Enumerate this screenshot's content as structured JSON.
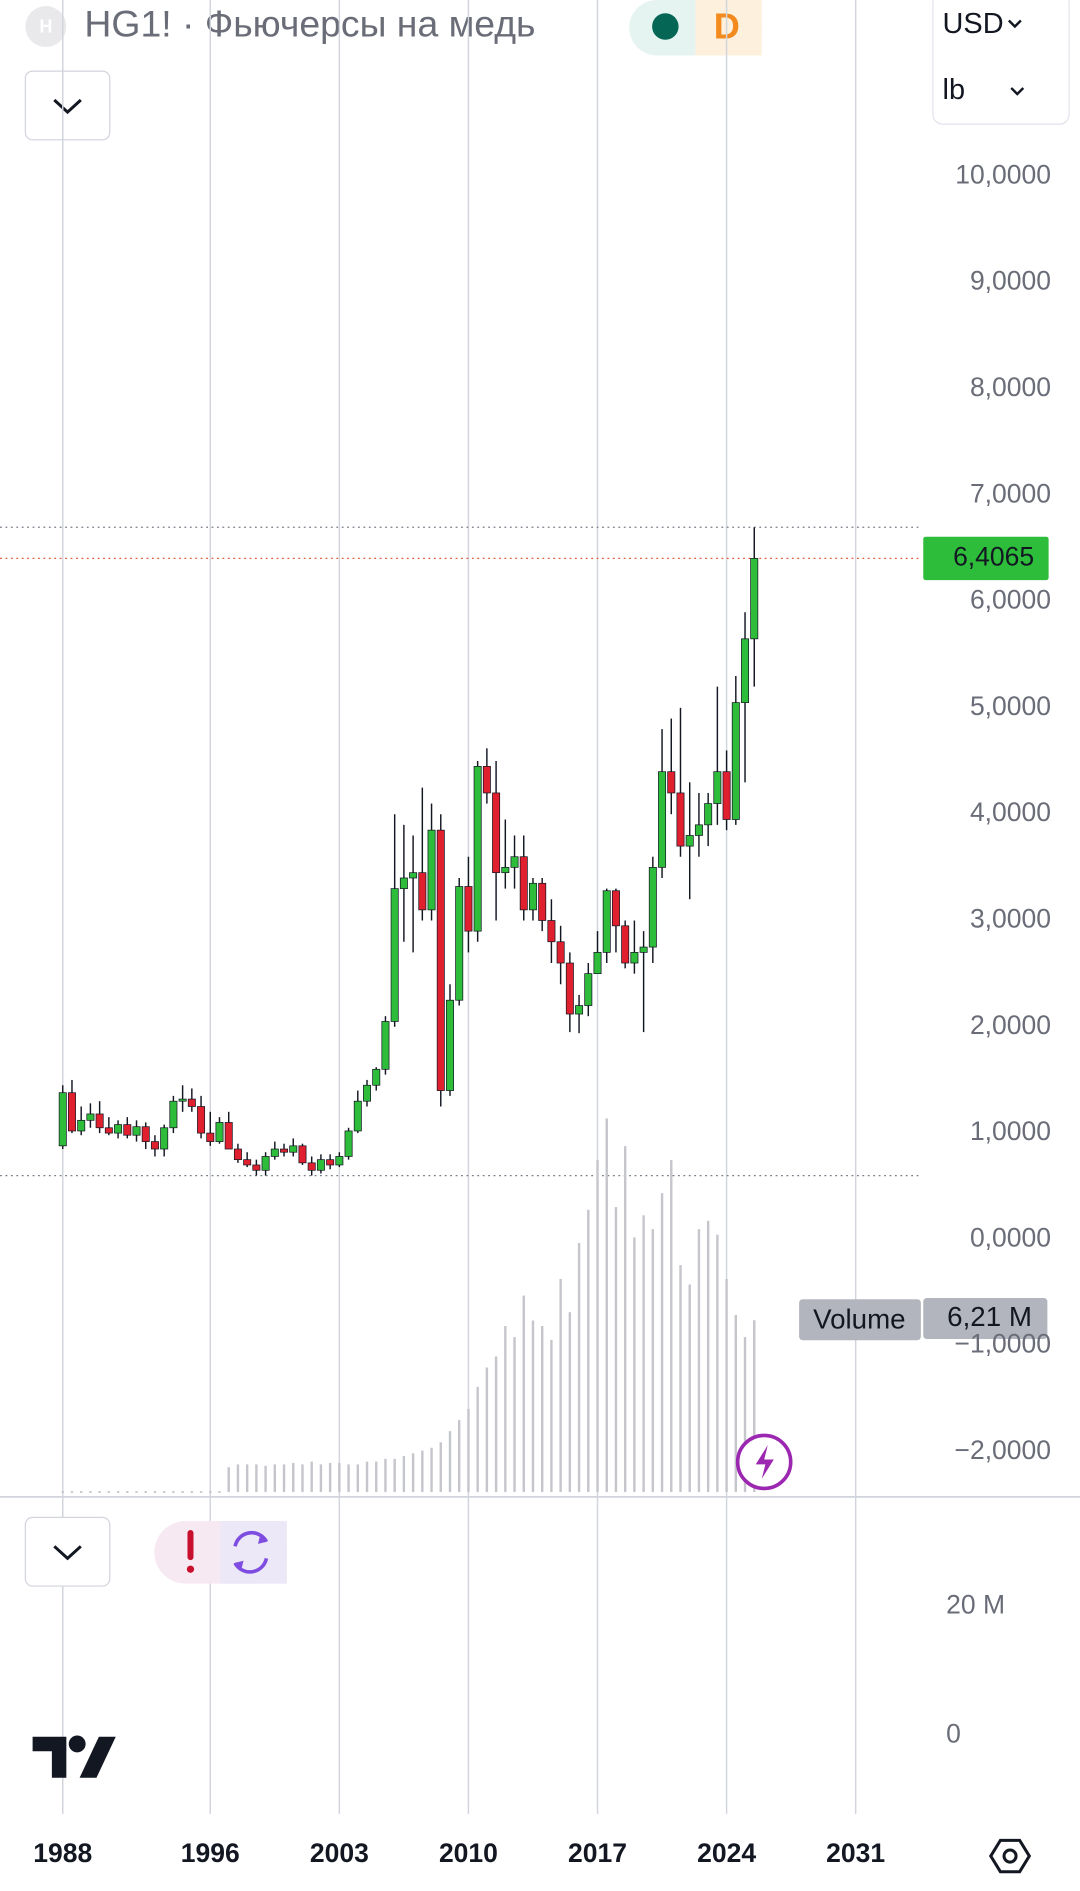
{
  "ui": {
    "logo_letter": "H",
    "title": "HG1! · Фьючерсы на медь",
    "badge": "D",
    "currency": "USD",
    "unit": "lb"
  },
  "chart_data": {
    "type": "candlestick",
    "up_color": "#2ebd3b",
    "down_color": "#e0202f",
    "x": [
      1988,
      1988.5,
      1989,
      1989.5,
      1990,
      1990.5,
      1991,
      1991.5,
      1992,
      1992.5,
      1993,
      1993.5,
      1994,
      1994.5,
      1995,
      1995.5,
      1996,
      1996.5,
      1997,
      1997.5,
      1998,
      1998.5,
      1999,
      1999.5,
      2000,
      2000.5,
      2001,
      2001.5,
      2002,
      2002.5,
      2003,
      2003.5,
      2004,
      2004.5,
      2005,
      2005.5,
      2006,
      2006.5,
      2007,
      2007.5,
      2008,
      2008.5,
      2009,
      2009.5,
      2010,
      2010.5,
      2011,
      2011.5,
      2012,
      2012.5,
      2013,
      2013.5,
      2014,
      2014.5,
      2015,
      2015.5,
      2016,
      2016.5,
      2017,
      2017.5,
      2018,
      2018.5,
      2019,
      2019.5,
      2020,
      2020.5,
      2021,
      2021.5,
      2022,
      2022.5,
      2023,
      2023.5,
      2024,
      2024.5,
      2025,
      2025.5
    ],
    "open": [
      0.88,
      1.38,
      1.02,
      1.12,
      1.18,
      1.05,
      1.0,
      1.08,
      0.98,
      1.06,
      0.92,
      0.85,
      1.05,
      1.3,
      1.32,
      1.25,
      1.0,
      0.92,
      1.1,
      0.85,
      0.75,
      0.7,
      0.65,
      0.78,
      0.85,
      0.82,
      0.88,
      0.72,
      0.65,
      0.75,
      0.7,
      0.78,
      1.02,
      1.3,
      1.45,
      1.6,
      2.05,
      3.3,
      3.4,
      3.45,
      3.1,
      3.85,
      1.4,
      2.25,
      3.32,
      2.9,
      4.45,
      4.2,
      3.45,
      3.5,
      3.6,
      3.1,
      3.35,
      3.0,
      2.8,
      2.6,
      2.12,
      2.2,
      2.5,
      2.7,
      3.28,
      2.95,
      2.6,
      2.7,
      2.75,
      3.5,
      4.4,
      4.2,
      3.7,
      3.8,
      3.9,
      4.1,
      4.4,
      3.95,
      5.05,
      5.65
    ],
    "high": [
      1.45,
      1.5,
      1.25,
      1.28,
      1.3,
      1.15,
      1.12,
      1.15,
      1.12,
      1.1,
      0.98,
      1.08,
      1.35,
      1.45,
      1.42,
      1.35,
      1.2,
      1.15,
      1.2,
      0.9,
      0.82,
      0.75,
      0.82,
      0.92,
      0.9,
      0.95,
      0.9,
      0.78,
      0.8,
      0.8,
      0.82,
      1.05,
      1.4,
      1.5,
      1.62,
      2.1,
      4.0,
      3.9,
      3.8,
      4.25,
      4.1,
      4.0,
      2.4,
      3.4,
      3.6,
      4.5,
      4.62,
      4.5,
      3.95,
      3.8,
      3.8,
      3.4,
      3.4,
      3.2,
      2.95,
      2.7,
      2.3,
      2.6,
      2.9,
      3.3,
      3.3,
      3.0,
      3.0,
      2.9,
      3.6,
      4.8,
      4.9,
      5.0,
      4.3,
      4.2,
      4.2,
      5.2,
      4.6,
      5.3,
      5.9,
      6.7
    ],
    "low": [
      0.85,
      1.0,
      0.98,
      1.05,
      1.0,
      0.98,
      0.95,
      0.95,
      0.92,
      0.85,
      0.78,
      0.78,
      1.0,
      1.2,
      1.2,
      0.95,
      0.88,
      0.9,
      0.85,
      0.72,
      0.68,
      0.6,
      0.6,
      0.75,
      0.78,
      0.78,
      0.7,
      0.6,
      0.62,
      0.66,
      0.68,
      0.75,
      1.0,
      1.25,
      1.4,
      1.55,
      2.0,
      2.8,
      2.7,
      3.0,
      3.0,
      1.25,
      1.35,
      2.2,
      2.7,
      2.8,
      4.1,
      3.0,
      3.3,
      3.3,
      3.0,
      3.0,
      2.9,
      2.6,
      2.4,
      1.95,
      1.94,
      2.1,
      2.5,
      2.6,
      2.7,
      2.55,
      2.5,
      1.95,
      2.6,
      3.4,
      4.0,
      3.6,
      3.2,
      3.6,
      3.7,
      3.9,
      3.85,
      3.9,
      4.3,
      5.2
    ],
    "close": [
      1.38,
      1.02,
      1.12,
      1.18,
      1.05,
      1.0,
      1.08,
      0.98,
      1.06,
      0.92,
      0.85,
      1.05,
      1.3,
      1.32,
      1.25,
      1.0,
      0.92,
      1.1,
      0.85,
      0.75,
      0.7,
      0.65,
      0.78,
      0.85,
      0.82,
      0.88,
      0.72,
      0.65,
      0.75,
      0.7,
      0.78,
      1.02,
      1.3,
      1.45,
      1.6,
      2.05,
      3.3,
      3.4,
      3.45,
      3.1,
      3.85,
      1.4,
      2.25,
      3.32,
      2.9,
      4.45,
      4.2,
      3.45,
      3.5,
      3.6,
      3.1,
      3.35,
      3.0,
      2.8,
      2.6,
      2.12,
      2.2,
      2.5,
      2.7,
      3.28,
      2.95,
      2.6,
      2.7,
      2.75,
      3.5,
      4.4,
      4.2,
      3.7,
      3.8,
      3.9,
      4.1,
      4.4,
      3.95,
      5.05,
      5.65,
      6.4065
    ],
    "last_label": "6,4065",
    "last_color": "#2ebd3b",
    "xlim": [
      1984.6,
      2034.6
    ],
    "xticks": [
      1988,
      1996,
      2003,
      2010,
      2017,
      2024,
      2031
    ],
    "ylim": [
      -2.4,
      11.66
    ],
    "yticks": [
      {
        "value": 10,
        "label": "10,0000"
      },
      {
        "value": 9,
        "label": "9,0000"
      },
      {
        "value": 8,
        "label": "8,0000"
      },
      {
        "value": 7,
        "label": "7,0000"
      },
      {
        "value": 6,
        "label": "6,0000"
      },
      {
        "value": 5,
        "label": "5,0000"
      },
      {
        "value": 4,
        "label": "4,0000"
      },
      {
        "value": 3,
        "label": "3,0000"
      },
      {
        "value": 2,
        "label": "2,0000"
      },
      {
        "value": 1,
        "label": "1,0000"
      },
      {
        "value": 0,
        "label": "0,0000"
      },
      {
        "value": -1,
        "label": "−1,0000"
      },
      {
        "value": -2,
        "label": "−2,0000"
      }
    ],
    "grid": true,
    "volume": {
      "name": "Volume",
      "color": "#c4c6cc",
      "values": [
        0.02,
        0.02,
        0.02,
        0.02,
        0.02,
        0.02,
        0.02,
        0.02,
        0.02,
        0.02,
        0.02,
        0.02,
        0.02,
        0.02,
        0.02,
        0.02,
        0.02,
        0.02,
        0.9,
        1.0,
        1.0,
        1.0,
        0.95,
        1.0,
        1.0,
        1.05,
        1.0,
        1.1,
        1.0,
        1.05,
        1.05,
        1.0,
        1.0,
        1.1,
        1.1,
        1.2,
        1.2,
        1.3,
        1.4,
        1.5,
        1.6,
        1.8,
        2.2,
        2.6,
        3.0,
        3.8,
        4.5,
        4.9,
        6.0,
        5.6,
        7.1,
        6.2,
        6.0,
        5.5,
        7.7,
        6.5,
        9.0,
        10.2,
        12.0,
        13.5,
        10.3,
        12.5,
        9.2,
        10.0,
        9.5,
        10.8,
        12.0,
        8.2,
        7.5,
        9.5,
        9.8,
        9.3,
        7.7,
        6.4,
        5.6,
        6.21
      ],
      "last_label": "6,21 M",
      "yticks": [
        {
          "value": 20,
          "label": "20 M"
        },
        0
      ]
    }
  }
}
